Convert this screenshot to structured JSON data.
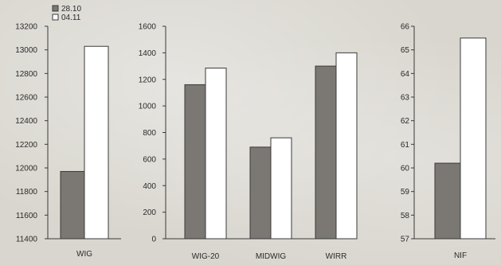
{
  "colors": {
    "series_28_10": "#7b7873",
    "series_04_11": "#ffffff"
  },
  "chart_data": [
    {
      "type": "bar",
      "categories": [
        "WIG"
      ],
      "series": [
        {
          "name": "28.10",
          "values": [
            11970
          ]
        },
        {
          "name": "04.11",
          "values": [
            13030
          ]
        }
      ],
      "ylim": [
        11400,
        13200
      ],
      "yticks": [
        11400,
        11600,
        11800,
        12000,
        12200,
        12400,
        12600,
        12800,
        13000,
        13200
      ],
      "legend": "top-left",
      "grid": false
    },
    {
      "type": "bar",
      "categories": [
        "WIG-20",
        "MIDWIG",
        "WIRR"
      ],
      "series": [
        {
          "name": "28.10",
          "values": [
            1160,
            690,
            1300
          ]
        },
        {
          "name": "04.11",
          "values": [
            1285,
            760,
            1400
          ]
        }
      ],
      "ylim": [
        0,
        1600
      ],
      "yticks": [
        0,
        200,
        400,
        600,
        800,
        1000,
        1200,
        1400,
        1600
      ],
      "grid": false
    },
    {
      "type": "bar",
      "categories": [
        "NIF"
      ],
      "series": [
        {
          "name": "28.10",
          "values": [
            60.2
          ]
        },
        {
          "name": "04.11",
          "values": [
            65.5
          ]
        }
      ],
      "ylim": [
        57,
        66
      ],
      "yticks": [
        57,
        58,
        59,
        60,
        61,
        62,
        63,
        64,
        65,
        66
      ],
      "grid": false
    }
  ]
}
